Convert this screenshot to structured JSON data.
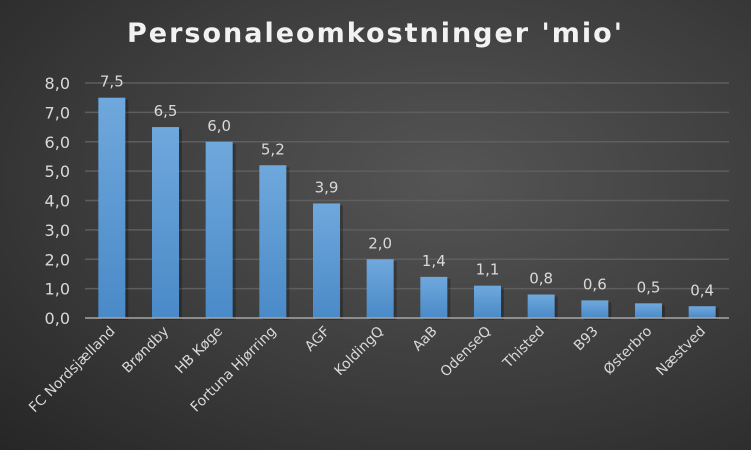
{
  "chart_data": {
    "type": "bar",
    "title": "Personaleomkostninger 'mio'",
    "categories": [
      "FC Nordsjælland",
      "Brøndby",
      "HB Køge",
      "Fortuna Hjørring",
      "AGF",
      "KoldingQ",
      "AaB",
      "OdenseQ",
      "Thisted",
      "B93",
      "Østerbro",
      "Næstved"
    ],
    "values": [
      7.5,
      6.5,
      6.0,
      5.2,
      3.9,
      2.0,
      1.4,
      1.1,
      0.8,
      0.6,
      0.5,
      0.4
    ],
    "value_labels": [
      "7,5",
      "6,5",
      "6,0",
      "5,2",
      "3,9",
      "2,0",
      "1,4",
      "1,1",
      "0,8",
      "0,6",
      "0,5",
      "0,4"
    ],
    "yticks": [
      "0,0",
      "1,0",
      "2,0",
      "3,0",
      "4,0",
      "5,0",
      "6,0",
      "7,0",
      "8,0"
    ],
    "ylim": [
      0,
      8
    ],
    "xlabel": "",
    "ylabel": "",
    "grid": true,
    "bar_color": "#5b9bd5"
  }
}
